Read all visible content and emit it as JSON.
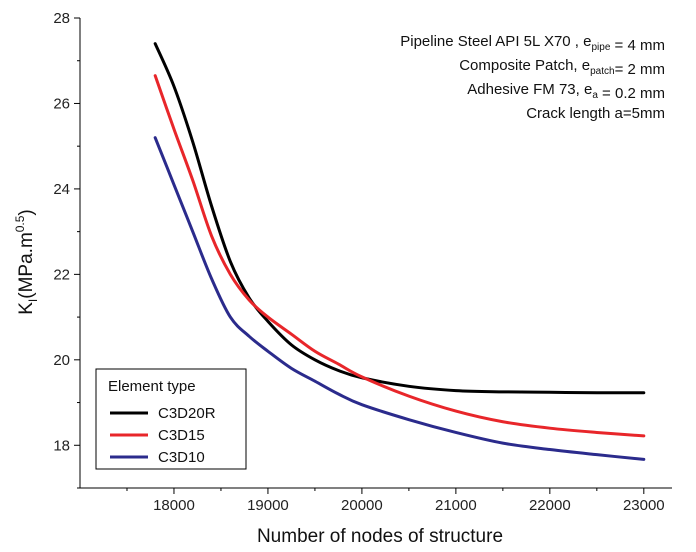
{
  "chart_data": {
    "type": "line",
    "xlabel": "Number of nodes of structure",
    "ylabel": {
      "main": "K",
      "sub": "I",
      "unit_prefix": "(MPa.m",
      "unit_sup": "0.5",
      "unit_suffix": ")"
    },
    "xlim": [
      17000,
      23300
    ],
    "ylim": [
      17,
      28
    ],
    "xticks": [
      18000,
      19000,
      20000,
      21000,
      22000,
      23000
    ],
    "yticks": [
      18,
      20,
      22,
      24,
      26,
      28
    ],
    "annotations": [
      {
        "parts": [
          {
            "t": "Pipeline Steel API 5L X70 , e"
          },
          {
            "t": "pipe",
            "sub": true
          },
          {
            "t": " = 4 mm"
          }
        ]
      },
      {
        "parts": [
          {
            "t": "Composite Patch, e"
          },
          {
            "t": "patch",
            "sub": true
          },
          {
            "t": "= 2 mm"
          }
        ]
      },
      {
        "parts": [
          {
            "t": "Adhesive FM 73, e"
          },
          {
            "t": "a",
            "sub": true
          },
          {
            "t": " = 0.2 mm"
          }
        ]
      },
      {
        "parts": [
          {
            "t": "Crack length a=5mm"
          }
        ]
      }
    ],
    "legend": {
      "title": "Element type",
      "position": "bottom-left"
    },
    "series": [
      {
        "name": "C3D20R",
        "color": "#000000",
        "x": [
          17800,
          18000,
          18200,
          18400,
          18600,
          18800,
          19000,
          19250,
          19500,
          19750,
          20000,
          20500,
          21000,
          21500,
          22000,
          22500,
          23000
        ],
        "y": [
          27.4,
          26.4,
          25.1,
          23.6,
          22.3,
          21.45,
          20.9,
          20.35,
          20.0,
          19.75,
          19.58,
          19.38,
          19.28,
          19.25,
          19.24,
          19.23,
          19.23
        ]
      },
      {
        "name": "C3D15",
        "color": "#e8262a",
        "x": [
          17800,
          18000,
          18200,
          18400,
          18600,
          18800,
          19000,
          19250,
          19500,
          19750,
          20000,
          20500,
          21000,
          21500,
          22000,
          22500,
          23000
        ],
        "y": [
          26.65,
          25.4,
          24.2,
          22.9,
          22.0,
          21.4,
          21.0,
          20.6,
          20.2,
          19.9,
          19.6,
          19.15,
          18.8,
          18.55,
          18.4,
          18.3,
          18.22
        ]
      },
      {
        "name": "C3D10",
        "color": "#2b2b8c",
        "x": [
          17800,
          18000,
          18200,
          18400,
          18600,
          18800,
          19000,
          19250,
          19500,
          19750,
          20000,
          20500,
          21000,
          21500,
          22000,
          22500,
          23000
        ],
        "y": [
          25.2,
          24.1,
          23.0,
          21.9,
          21.0,
          20.55,
          20.2,
          19.8,
          19.5,
          19.2,
          18.95,
          18.6,
          18.3,
          18.05,
          17.9,
          17.78,
          17.67
        ]
      }
    ]
  }
}
